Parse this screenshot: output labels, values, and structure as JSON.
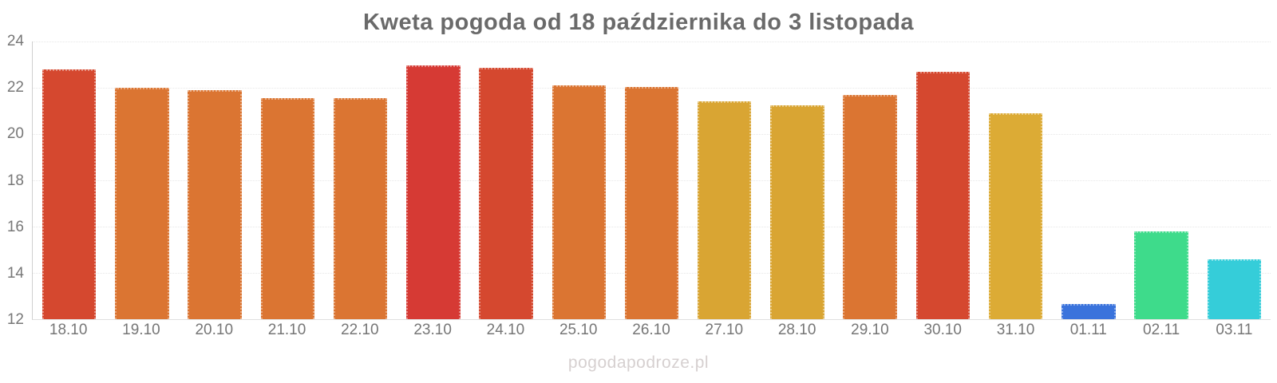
{
  "chart": {
    "title": "Kweta pogoda od 18 października do 3 listopada"
  },
  "chart_data": {
    "type": "bar",
    "title": "Kweta pogoda od 18 października do 3 listopada",
    "categories": [
      "18.10",
      "19.10",
      "20.10",
      "21.10",
      "22.10",
      "23.10",
      "24.10",
      "25.10",
      "26.10",
      "27.10",
      "28.10",
      "29.10",
      "30.10",
      "31.10",
      "01.11",
      "02.11",
      "03.11"
    ],
    "values": [
      22.8,
      22.0,
      21.9,
      21.55,
      21.55,
      22.95,
      22.85,
      22.1,
      22.05,
      21.4,
      21.25,
      21.7,
      22.7,
      20.9,
      12.65,
      15.8,
      14.6
    ],
    "bar_colors": [
      "#d5482f",
      "#db7532",
      "#db7532",
      "#db7532",
      "#db7532",
      "#d63a34",
      "#d5482f",
      "#db7532",
      "#db7532",
      "#d9a533",
      "#d9a533",
      "#db7532",
      "#d5482f",
      "#dcab35",
      "#3a73dc",
      "#3edb8b",
      "#35cdd9"
    ],
    "xlabel": "",
    "ylabel": "",
    "ylim": [
      12,
      24
    ],
    "yticks": [
      24,
      22,
      20,
      18,
      16,
      14,
      12
    ],
    "grid": true,
    "legend": false
  },
  "footer": {
    "watermark": "pogodapodroze.pl"
  },
  "colors": {
    "title_text": "#6a6a6a",
    "axis_text": "#777777",
    "gridline": "#e7e7e7",
    "axis_line": "#cfcfcf",
    "watermark_text": "#d6d0d0",
    "background": "#ffffff",
    "hot_red": "#d63a34",
    "warm_red_orange": "#d5482f",
    "orange": "#db7532",
    "yellow": "#d9a533",
    "cold_blue": "#3a73dc",
    "mild_green": "#3edb8b",
    "cool_cyan": "#35cdd9"
  }
}
